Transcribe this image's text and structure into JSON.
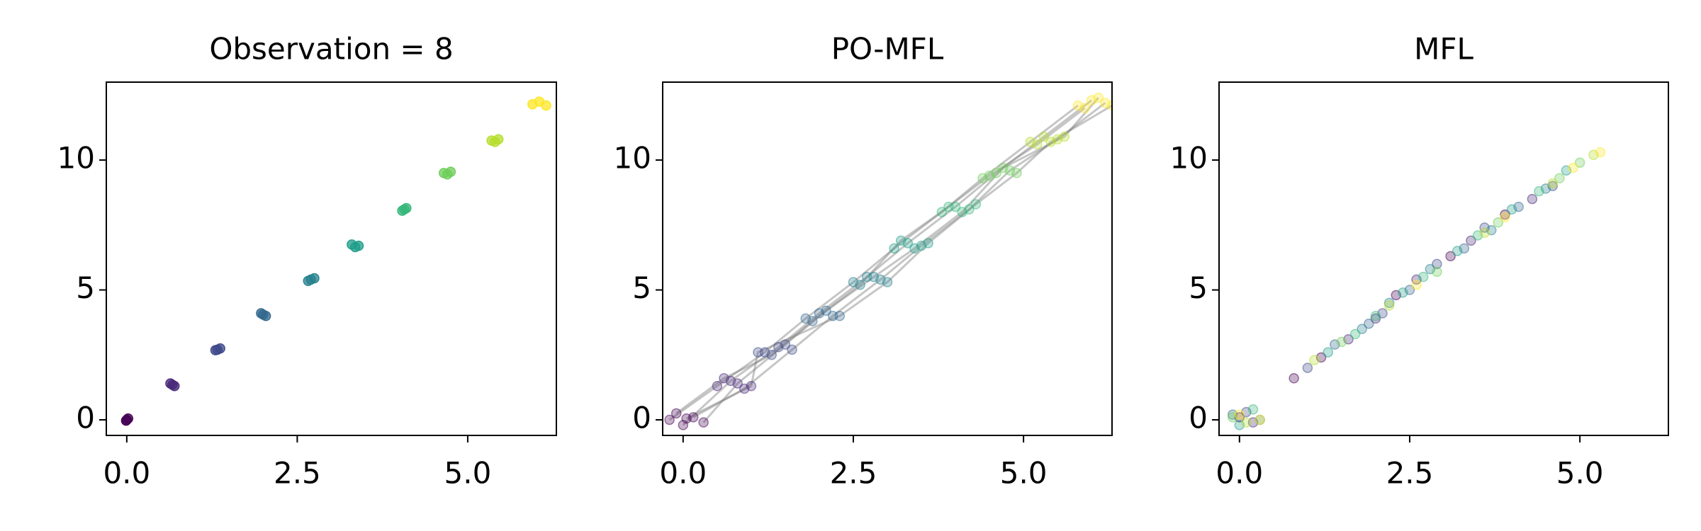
{
  "chart_data": [
    {
      "type": "scatter",
      "title": "Observation = 8",
      "marker_alpha": 0.75,
      "xlim": [
        -0.3,
        6.3
      ],
      "ylim": [
        -0.6,
        13.0
      ],
      "xticks": [
        {
          "value": 0,
          "label": "0.0"
        },
        2.5,
        {
          "value": 5,
          "label": "5.0"
        }
      ],
      "yticks": [
        0,
        5,
        10
      ],
      "series": [
        {
          "color": "#440154",
          "x": [
            0,
            0.02,
            -0.01
          ],
          "values": [
            0,
            0.05,
            -0.03
          ]
        },
        {
          "color": "#482878",
          "x": [
            0.67,
            0.7,
            0.64
          ],
          "values": [
            1.35,
            1.3,
            1.4
          ]
        },
        {
          "color": "#3e4989",
          "x": [
            1.33,
            1.37,
            1.3
          ],
          "values": [
            2.7,
            2.75,
            2.68
          ]
        },
        {
          "color": "#31688e",
          "x": [
            2.0,
            2.04,
            1.97
          ],
          "values": [
            4.05,
            4.0,
            4.1
          ]
        },
        {
          "color": "#26828e",
          "x": [
            2.7,
            2.75,
            2.66
          ],
          "values": [
            5.4,
            5.45,
            5.35
          ]
        },
        {
          "color": "#1f9e89",
          "x": [
            3.3,
            3.4,
            3.35
          ],
          "values": [
            6.75,
            6.7,
            6.65
          ]
        },
        {
          "color": "#35b779",
          "x": [
            4.07,
            4.1,
            4.04
          ],
          "values": [
            8.1,
            8.15,
            8.05
          ]
        },
        {
          "color": "#6ece58",
          "x": [
            4.65,
            4.75,
            4.7
          ],
          "values": [
            9.5,
            9.55,
            9.45
          ]
        },
        {
          "color": "#b5de2b",
          "x": [
            5.35,
            5.45,
            5.4
          ],
          "values": [
            10.75,
            10.8,
            10.7
          ]
        },
        {
          "color": "#fde725",
          "x": [
            5.95,
            6.05,
            6.15
          ],
          "values": [
            12.15,
            12.25,
            12.1
          ]
        }
      ]
    },
    {
      "type": "scatter",
      "title": "PO-MFL",
      "marker_alpha": 0.3,
      "trajectory_color": "#808080",
      "xlim": [
        -0.3,
        6.3
      ],
      "ylim": [
        -0.6,
        13.0
      ],
      "xticks": [
        {
          "value": 0,
          "label": "0.0"
        },
        2.5,
        {
          "value": 5,
          "label": "5.0"
        }
      ],
      "yticks": [
        0,
        5,
        10
      ],
      "series": [
        {
          "color": "#440154",
          "x": [
            -0.2,
            0,
            0.15,
            -0.1,
            0.3,
            0.05
          ],
          "values": [
            0,
            -0.2,
            0.1,
            0.25,
            -0.1,
            0.05
          ]
        },
        {
          "color": "#482878",
          "x": [
            0.5,
            0.7,
            0.9,
            0.6,
            0.8,
            1.0
          ],
          "values": [
            1.3,
            1.5,
            1.2,
            1.6,
            1.4,
            1.3
          ]
        },
        {
          "color": "#3e4989",
          "x": [
            1.2,
            1.4,
            1.6,
            1.3,
            1.5,
            1.1
          ],
          "values": [
            2.6,
            2.8,
            2.7,
            2.5,
            2.9,
            2.6
          ]
        },
        {
          "color": "#31688e",
          "x": [
            1.8,
            2.0,
            2.2,
            1.9,
            2.1,
            2.3
          ],
          "values": [
            3.9,
            4.1,
            4.0,
            3.8,
            4.2,
            4.0
          ]
        },
        {
          "color": "#26828e",
          "x": [
            2.5,
            2.7,
            2.9,
            2.6,
            2.8,
            3.0
          ],
          "values": [
            5.3,
            5.5,
            5.4,
            5.2,
            5.5,
            5.3
          ]
        },
        {
          "color": "#1f9e89",
          "x": [
            3.1,
            3.3,
            3.5,
            3.2,
            3.4,
            3.6
          ],
          "values": [
            6.6,
            6.8,
            6.7,
            6.9,
            6.6,
            6.8
          ]
        },
        {
          "color": "#35b779",
          "x": [
            3.8,
            4.0,
            4.2,
            3.9,
            4.1,
            4.3
          ],
          "values": [
            8.0,
            8.2,
            8.1,
            8.2,
            8.0,
            8.3
          ]
        },
        {
          "color": "#6ece58",
          "x": [
            4.4,
            4.6,
            4.8,
            4.5,
            4.7,
            4.9
          ],
          "values": [
            9.3,
            9.5,
            9.6,
            9.4,
            9.7,
            9.5
          ]
        },
        {
          "color": "#b5de2b",
          "x": [
            5.1,
            5.3,
            5.5,
            5.2,
            5.6,
            5.4
          ],
          "values": [
            10.7,
            10.9,
            10.8,
            10.6,
            10.9,
            10.7
          ]
        },
        {
          "color": "#fde725",
          "x": [
            5.8,
            6.0,
            6.2,
            5.9,
            6.1,
            6.3
          ],
          "values": [
            12.1,
            12.3,
            12.2,
            12.0,
            12.4,
            12.1
          ]
        }
      ]
    },
    {
      "type": "scatter",
      "title": "MFL",
      "marker_alpha": 0.3,
      "xlim": [
        -0.3,
        6.3
      ],
      "ylim": [
        -0.6,
        13.0
      ],
      "xticks": [
        {
          "value": 0,
          "label": "0.0"
        },
        2.5,
        {
          "value": 5,
          "label": "5.0"
        }
      ],
      "yticks": [
        0,
        5,
        10
      ],
      "series": [
        {
          "color": "#440154",
          "x": [
            0.0,
            1.2,
            2.3,
            3.1,
            3.9,
            0.8
          ],
          "values": [
            0.1,
            2.4,
            4.8,
            6.3,
            7.9,
            1.6
          ]
        },
        {
          "color": "#482878",
          "x": [
            0.2,
            1.6,
            2.6,
            3.4,
            4.3,
            2.0
          ],
          "values": [
            -0.1,
            3.1,
            5.4,
            6.9,
            8.5,
            3.9
          ]
        },
        {
          "color": "#3e4989",
          "x": [
            0.1,
            1.0,
            2.1,
            2.9,
            3.6,
            4.6
          ],
          "values": [
            0.3,
            2.0,
            4.1,
            6.0,
            7.4,
            9.0
          ]
        },
        {
          "color": "#31688e",
          "x": [
            -0.1,
            1.4,
            2.5,
            3.3,
            4.1,
            1.9
          ],
          "values": [
            0.2,
            2.9,
            5.0,
            6.6,
            8.2,
            3.7
          ]
        },
        {
          "color": "#26828e",
          "x": [
            0.3,
            1.8,
            2.8,
            3.7,
            4.5,
            2.2
          ],
          "values": [
            0.0,
            3.5,
            5.8,
            7.3,
            8.9,
            4.5
          ]
        },
        {
          "color": "#1f9e89",
          "x": [
            0.0,
            1.3,
            2.4,
            3.2,
            4.0,
            4.8
          ],
          "values": [
            -0.2,
            2.6,
            4.9,
            6.5,
            8.1,
            9.6
          ]
        },
        {
          "color": "#35b779",
          "x": [
            0.2,
            1.7,
            2.7,
            3.5,
            4.4,
            2.0
          ],
          "values": [
            0.4,
            3.3,
            5.5,
            7.1,
            8.8,
            4.0
          ]
        },
        {
          "color": "#6ece58",
          "x": [
            -0.1,
            1.5,
            2.9,
            3.8,
            4.7,
            5.0
          ],
          "values": [
            0.1,
            3.0,
            5.7,
            7.6,
            9.3,
            9.9
          ]
        },
        {
          "color": "#b5de2b",
          "x": [
            0.1,
            1.1,
            2.2,
            3.6,
            4.6,
            5.2
          ],
          "values": [
            -0.1,
            2.3,
            4.4,
            7.2,
            9.1,
            10.2
          ]
        },
        {
          "color": "#fde725",
          "x": [
            0.0,
            0.3,
            2.6,
            3.9,
            4.9,
            5.3
          ],
          "values": [
            0.2,
            0.0,
            5.2,
            7.8,
            9.7,
            10.3
          ]
        }
      ]
    }
  ]
}
